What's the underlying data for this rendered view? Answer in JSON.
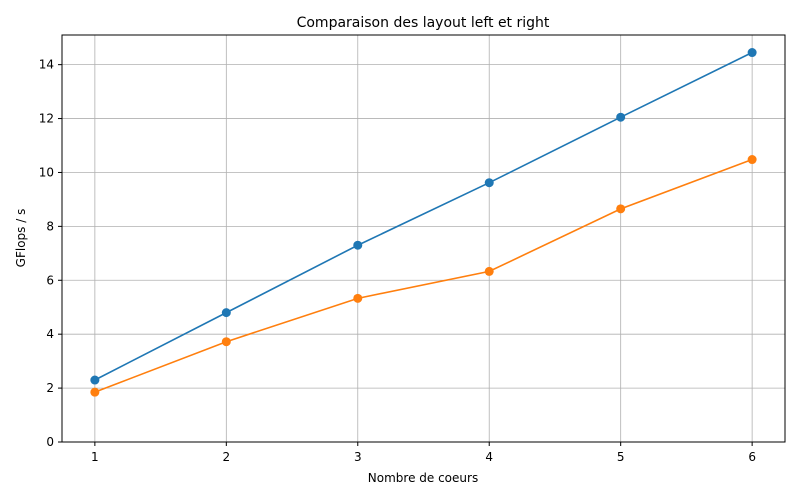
{
  "chart_data": {
    "type": "line",
    "title": "Comparaison des layout left et right",
    "xlabel": "Nombre de coeurs",
    "ylabel": "GFlops / s",
    "x": [
      1,
      2,
      3,
      4,
      5,
      6
    ],
    "xlim": [
      0.75,
      6.25
    ],
    "ylim": [
      0,
      15.1
    ],
    "xticks": [
      1,
      2,
      3,
      4,
      5,
      6
    ],
    "yticks": [
      0,
      2,
      4,
      6,
      8,
      10,
      12,
      14
    ],
    "grid": true,
    "series": [
      {
        "values": [
          2.3,
          4.8,
          7.3,
          9.62,
          12.05,
          14.45
        ],
        "color": "#1f77b4"
      },
      {
        "values": [
          1.85,
          3.72,
          5.33,
          6.33,
          8.65,
          10.48
        ],
        "color": "#ff7f0e"
      }
    ]
  }
}
